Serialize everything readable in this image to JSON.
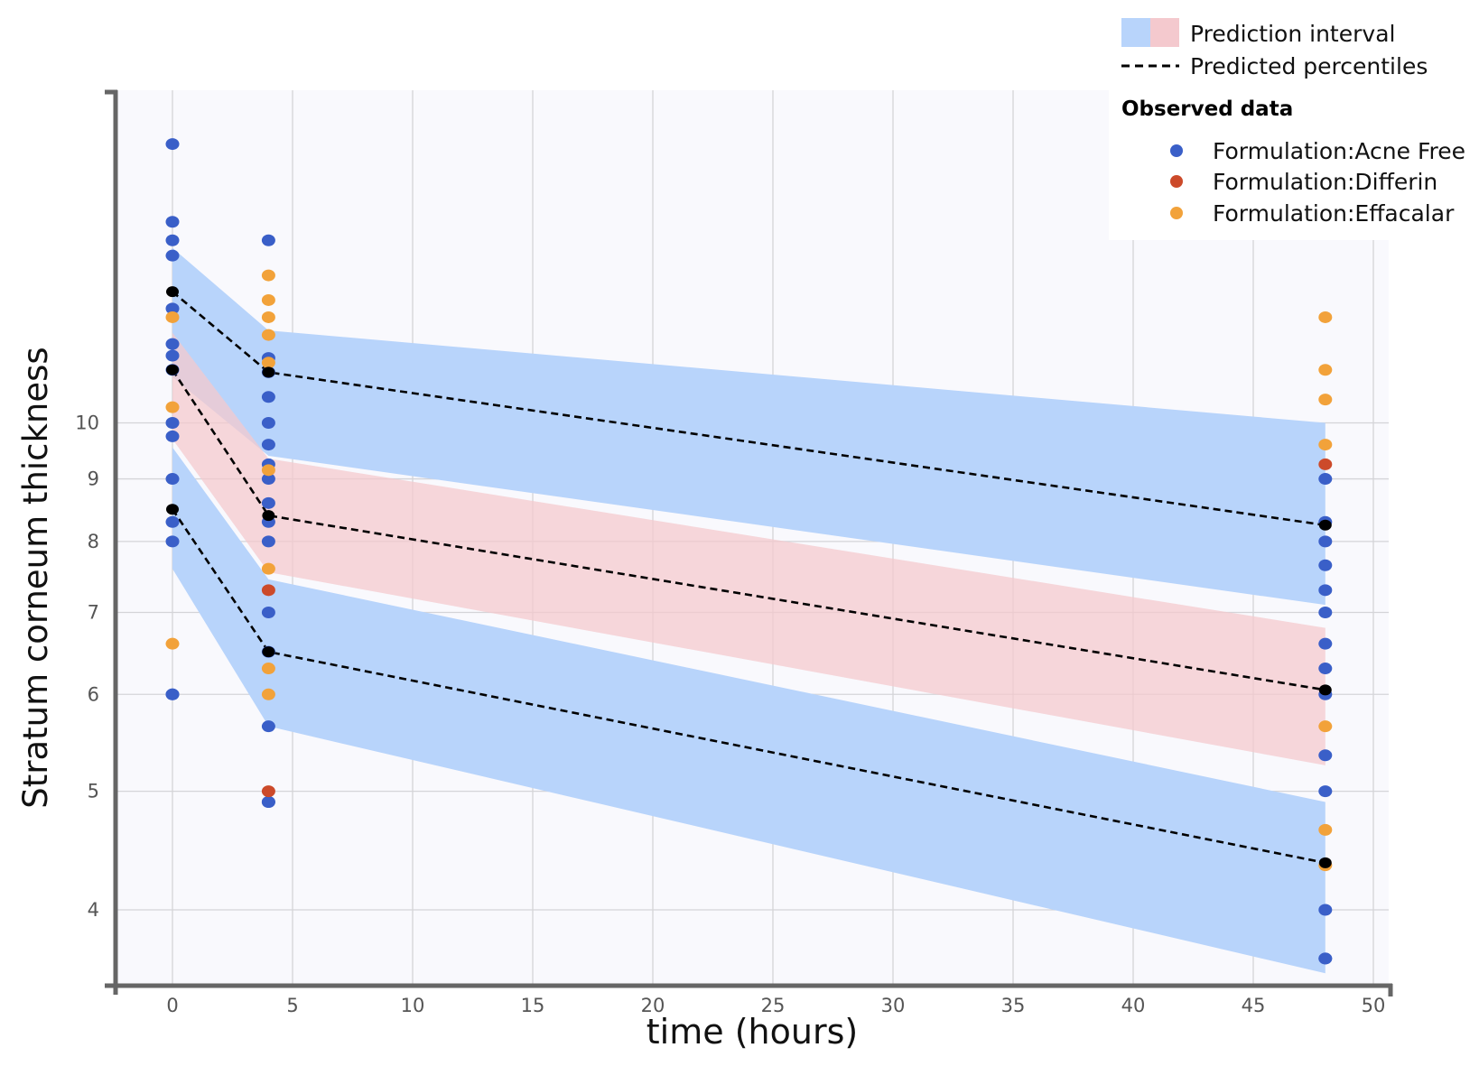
{
  "chart_data": {
    "type": "scatter",
    "title": "",
    "xlabel": "time (hours)",
    "ylabel": "Stratum corneum thickness",
    "y_scale": "log",
    "xlim": [
      -3.5,
      50.5
    ],
    "ylim": [
      3.48,
      18.7
    ],
    "x_ticks": [
      0,
      5,
      10,
      15,
      20,
      25,
      30,
      35,
      40,
      45,
      50
    ],
    "x_tick_labels": [
      "0",
      "5",
      "10",
      "15",
      "20",
      "25",
      "30",
      "35",
      "40",
      "45",
      "50"
    ],
    "y_ticks": [
      4,
      5,
      6,
      7,
      8,
      9,
      10
    ],
    "y_tick_labels": [
      "4",
      "5",
      "6",
      "7",
      "8",
      "9",
      "10"
    ],
    "grid": true,
    "legend_position": "top-right",
    "prediction_interval": {
      "x": [
        0,
        4,
        48
      ],
      "bands": [
        {
          "name": "upper",
          "color": "#b8d4fb",
          "lower": [
            10.9,
            9.4,
            7.1
          ],
          "upper": [
            13.9,
            11.9,
            10.0
          ]
        },
        {
          "name": "median",
          "color": "#f4c9ce",
          "lower": [
            9.7,
            7.55,
            5.25
          ],
          "upper": [
            11.85,
            9.35,
            6.8
          ]
        },
        {
          "name": "lower",
          "color": "#b8d4fb",
          "lower": [
            7.6,
            5.65,
            3.55
          ],
          "upper": [
            9.55,
            7.45,
            4.9
          ]
        }
      ]
    },
    "predicted_percentiles": {
      "x": [
        0,
        4,
        48
      ],
      "series": [
        {
          "name": "upper percentile",
          "values": [
            12.8,
            11.0,
            8.25
          ]
        },
        {
          "name": "median percentile",
          "values": [
            11.05,
            8.4,
            6.05
          ]
        },
        {
          "name": "lower percentile",
          "values": [
            8.5,
            6.5,
            4.37
          ]
        }
      ]
    },
    "observed": [
      {
        "name": "Formulation:Acne Free",
        "color": "#3a5fc8",
        "x": [
          0,
          0,
          0,
          0,
          0,
          0,
          0,
          0,
          0,
          0,
          0,
          0,
          0,
          0,
          0,
          4,
          4,
          4,
          4,
          4,
          4,
          4,
          4,
          4,
          4,
          4,
          4,
          4,
          4,
          4,
          4,
          48,
          48,
          48,
          48,
          48,
          48,
          48,
          48,
          48,
          48,
          48,
          48,
          48,
          48
        ],
        "y": [
          16.9,
          14.6,
          14.1,
          13.7,
          12.4,
          11.6,
          11.35,
          11.05,
          10.0,
          9.75,
          9.0,
          8.3,
          8.0,
          6.0,
          6.0,
          14.1,
          11.3,
          11.0,
          10.5,
          10.0,
          9.6,
          9.25,
          9.0,
          8.6,
          8.3,
          8.0,
          7.0,
          6.5,
          5.65,
          4.9,
          4.9,
          9.0,
          8.3,
          8.0,
          7.65,
          7.3,
          7.0,
          6.6,
          6.3,
          6.0,
          5.35,
          5.0,
          4.0,
          3.65,
          3.65
        ],
        "note": "group positions approximate"
      },
      {
        "name": "Formulation:Differin",
        "color": "#cc4a2a",
        "x": [
          4,
          4,
          48
        ],
        "y": [
          7.3,
          5.0,
          9.25
        ]
      },
      {
        "name": "Formulation:Effacalar",
        "color": "#f2a23a",
        "x": [
          0,
          0,
          0,
          4,
          4,
          4,
          4,
          4,
          4,
          4,
          4,
          4,
          48,
          48,
          48,
          48,
          48,
          48,
          48
        ],
        "y": [
          12.2,
          10.3,
          6.6,
          13.2,
          12.6,
          12.2,
          11.8,
          11.2,
          9.15,
          7.6,
          6.3,
          6.0,
          12.2,
          11.05,
          10.45,
          9.6,
          5.65,
          4.65,
          4.35
        ]
      }
    ],
    "percentile_markers": {
      "name": "percentile points",
      "color": "#000000",
      "x": [
        0,
        0,
        0,
        4,
        4,
        4,
        48,
        48,
        48
      ],
      "y": [
        12.8,
        11.05,
        8.5,
        11.0,
        8.4,
        6.5,
        8.25,
        6.05,
        4.37
      ]
    },
    "legend": {
      "prediction_interval_label": "Prediction interval",
      "predicted_percentiles_label": "Predicted percentiles",
      "observed_heading": "Observed data",
      "entries": [
        "Formulation:Acne Free",
        "Formulation:Differin",
        "Formulation:Effacalar"
      ]
    }
  },
  "colors": {
    "panel_bg": "#f9f9fd",
    "grid": "#d4d4d8",
    "axis": "#666666",
    "blue_band": "#b8d4fb",
    "red_band": "#f4c9ce",
    "overlap_band": "#b0aed6"
  }
}
